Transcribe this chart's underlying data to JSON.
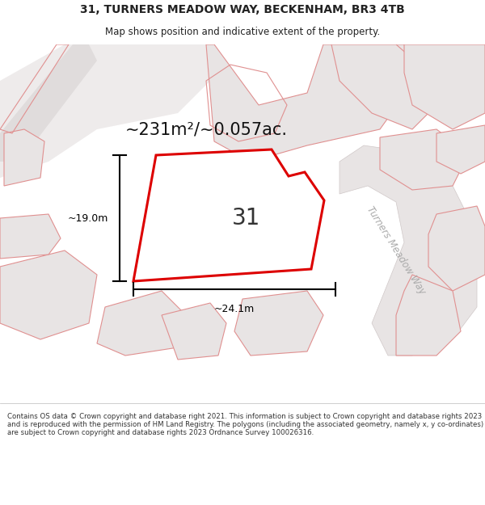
{
  "title_line1": "31, TURNERS MEADOW WAY, BECKENHAM, BR3 4TB",
  "title_line2": "Map shows position and indicative extent of the property.",
  "area_text": "~231m²/~0.057ac.",
  "label_31": "31",
  "dim_width": "~24.1m",
  "dim_height": "~19.0m",
  "street_label": "Turners Meadow Way",
  "footer": "Contains OS data © Crown copyright and database right 2021. This information is subject to Crown copyright and database rights 2023 and is reproduced with the permission of HM Land Registry. The polygons (including the associated geometry, namely x, y co-ordinates) are subject to Crown copyright and database rights 2023 Ordnance Survey 100026316.",
  "map_bg": "#f8f7f7",
  "plot_fill": "#ffffff",
  "plot_stroke": "#dd0000",
  "neighbor_fill": "#e8e4e4",
  "neighbor_stroke": "#e09090",
  "road_fill": "#e8e4e4",
  "road_stroke": "#c8a0a0",
  "dim_color": "#000000",
  "title_color": "#222222",
  "footer_color": "#333333"
}
